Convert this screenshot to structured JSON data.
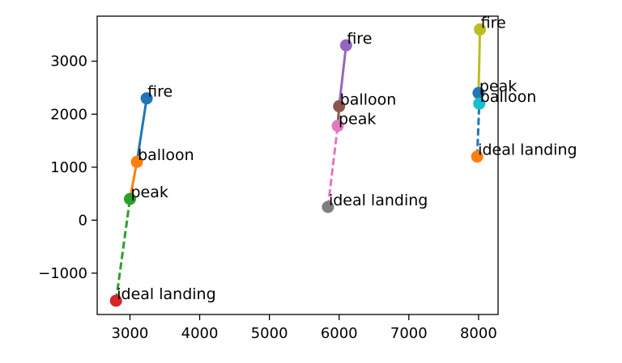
{
  "chart_data": {
    "type": "scatter",
    "title": "",
    "xlabel": "",
    "ylabel": "",
    "xlim": [
      2530,
      8280
    ],
    "ylim": [
      -1780,
      3850
    ],
    "xticks": [
      3000,
      4000,
      5000,
      6000,
      7000,
      8000
    ],
    "yticks": [
      -1000,
      0,
      1000,
      2000,
      3000
    ],
    "xtick_labels": [
      "3000",
      "4000",
      "5000",
      "6000",
      "7000",
      "8000"
    ],
    "ytick_labels": [
      "−1000",
      "0",
      "1000",
      "2000",
      "3000"
    ],
    "grid": false,
    "points": [
      {
        "label": "fire",
        "x": 3240,
        "y": 2300,
        "color": "#1f77b4"
      },
      {
        "label": "balloon",
        "x": 3100,
        "y": 1100,
        "color": "#ff7f0e"
      },
      {
        "label": "peak",
        "x": 3000,
        "y": 400,
        "color": "#2ca02c"
      },
      {
        "label": "ideal landing",
        "x": 2800,
        "y": -1520,
        "color": "#d62728"
      },
      {
        "label": "fire",
        "x": 6100,
        "y": 3300,
        "color": "#9467bd"
      },
      {
        "label": "balloon",
        "x": 6000,
        "y": 2150,
        "color": "#8c564b"
      },
      {
        "label": "peak",
        "x": 5980,
        "y": 1780,
        "color": "#e377c2"
      },
      {
        "label": "ideal landing",
        "x": 5840,
        "y": 250,
        "color": "#7f7f7f"
      },
      {
        "label": "fire",
        "x": 8020,
        "y": 3600,
        "color": "#bcbd22"
      },
      {
        "label": "peak",
        "x": 8000,
        "y": 2400,
        "color": "#1f77b4"
      },
      {
        "label": "balloon",
        "x": 8010,
        "y": 2200,
        "color": "#17becf"
      },
      {
        "label": "ideal landing",
        "x": 7980,
        "y": 1200,
        "color": "#ff7f0e"
      }
    ],
    "segments": [
      {
        "from": [
          3100,
          1100
        ],
        "to": [
          3240,
          2300
        ],
        "style": "solid",
        "color": "#1f77b4"
      },
      {
        "from": [
          3000,
          400
        ],
        "to": [
          3100,
          1100
        ],
        "style": "solid",
        "color": "#ff7f0e"
      },
      {
        "from": [
          2800,
          -1520
        ],
        "to": [
          3000,
          400
        ],
        "style": "dashed",
        "color": "#2ca02c"
      },
      {
        "from": [
          6000,
          2150
        ],
        "to": [
          6100,
          3300
        ],
        "style": "solid",
        "color": "#9467bd"
      },
      {
        "from": [
          5980,
          1780
        ],
        "to": [
          6000,
          2150
        ],
        "style": "solid",
        "color": "#8c564b"
      },
      {
        "from": [
          5840,
          250
        ],
        "to": [
          5980,
          1780
        ],
        "style": "dashed",
        "color": "#e377c2"
      },
      {
        "from": [
          8000,
          2400
        ],
        "to": [
          8020,
          3600
        ],
        "style": "solid",
        "color": "#bcbd22"
      },
      {
        "from": [
          7980,
          1200
        ],
        "to": [
          8010,
          2200
        ],
        "style": "dashed",
        "color": "#1f77b4"
      }
    ]
  }
}
